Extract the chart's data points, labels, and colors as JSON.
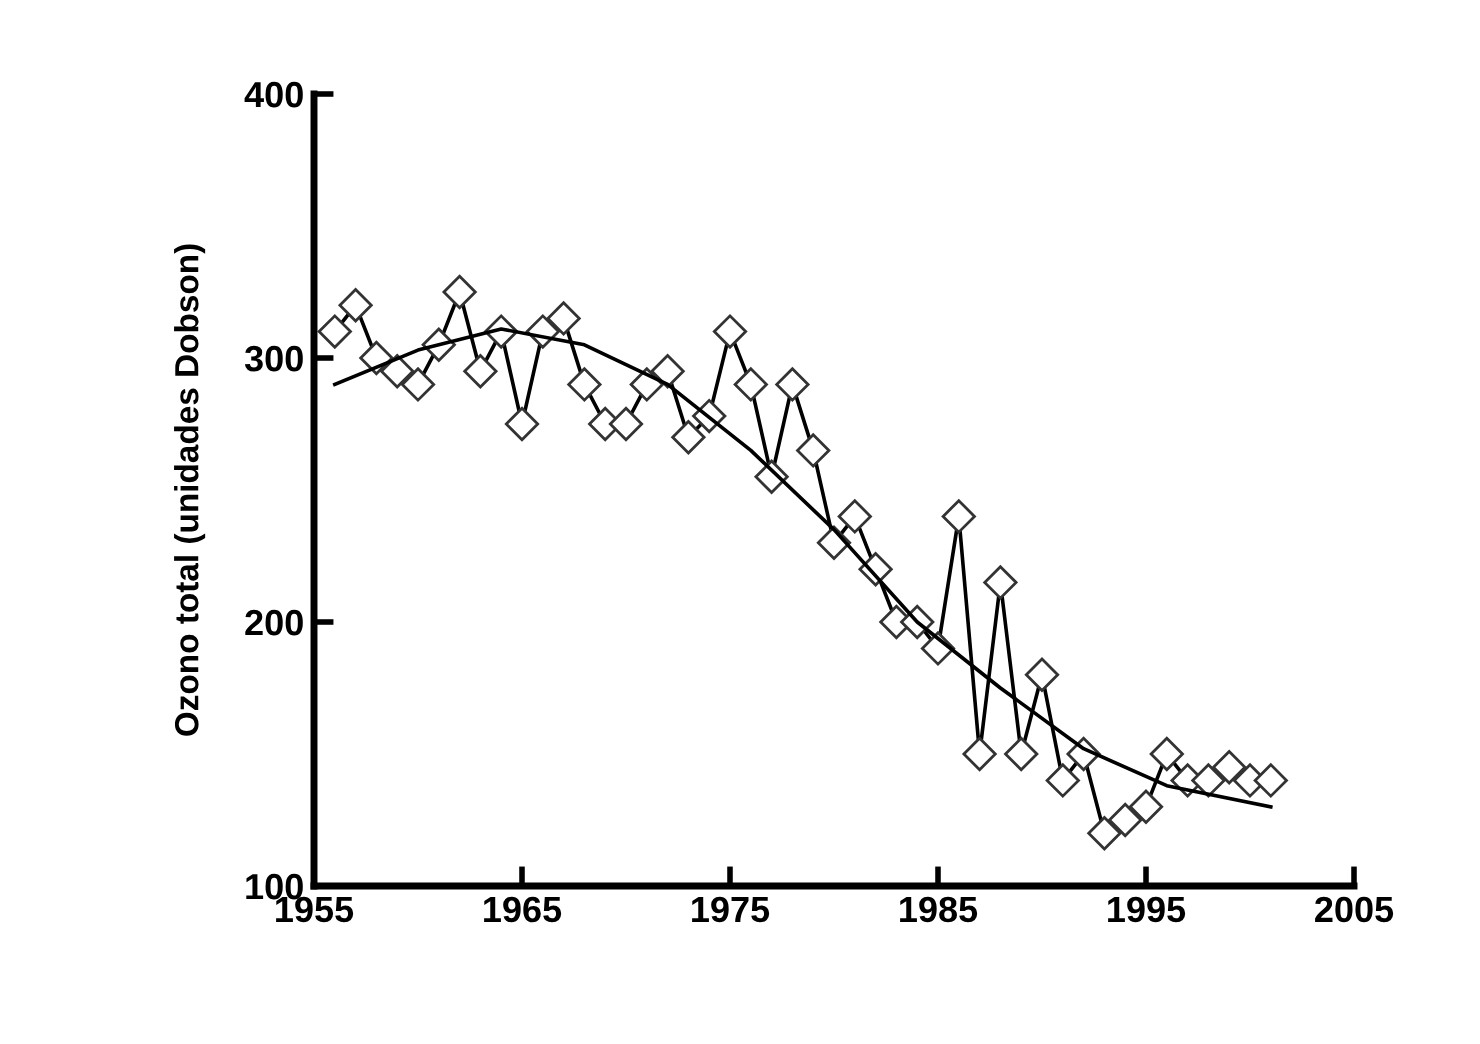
{
  "chart_data": {
    "type": "line",
    "ylabel": "Ozono total (unidades Dobson)",
    "xlim": [
      1955,
      2005
    ],
    "xticks": [
      1955,
      1965,
      1975,
      1985,
      1995,
      2005
    ],
    "ylim": [
      100,
      400
    ],
    "yticks": [
      100,
      200,
      300,
      400
    ],
    "grid": false,
    "legend": false,
    "series": [
      {
        "color": "#000000",
        "marker": "diamond",
        "line_style": "solid",
        "x": [
          1956,
          1957,
          1958,
          1959,
          1960,
          1961,
          1962,
          1963,
          1964,
          1965,
          1966,
          1967,
          1968,
          1969,
          1970,
          1971,
          1972,
          1973,
          1974,
          1975,
          1976,
          1977,
          1978,
          1979,
          1980,
          1981,
          1982,
          1983,
          1984,
          1985,
          1986,
          1987,
          1988,
          1989,
          1990,
          1991,
          1992,
          1993,
          1994,
          1995,
          1996,
          1997,
          1998,
          1999,
          2000,
          2001
        ],
        "values": [
          310,
          320,
          300,
          295,
          290,
          305,
          325,
          295,
          310,
          275,
          310,
          315,
          290,
          275,
          275,
          290,
          295,
          270,
          278,
          310,
          290,
          255,
          290,
          265,
          230,
          240,
          220,
          200,
          200,
          190,
          240,
          150,
          215,
          150,
          180,
          140,
          150,
          120,
          125,
          130,
          150,
          140,
          140,
          145,
          140,
          140
        ]
      },
      {
        "color": "#000000",
        "marker": "none",
        "line_style": "solid",
        "x": [
          1956,
          1960,
          1964,
          1968,
          1972,
          1976,
          1980,
          1984,
          1988,
          1992,
          1996,
          2001
        ],
        "values": [
          290,
          303,
          311,
          305,
          290,
          265,
          235,
          200,
          175,
          152,
          138,
          130
        ]
      }
    ]
  }
}
